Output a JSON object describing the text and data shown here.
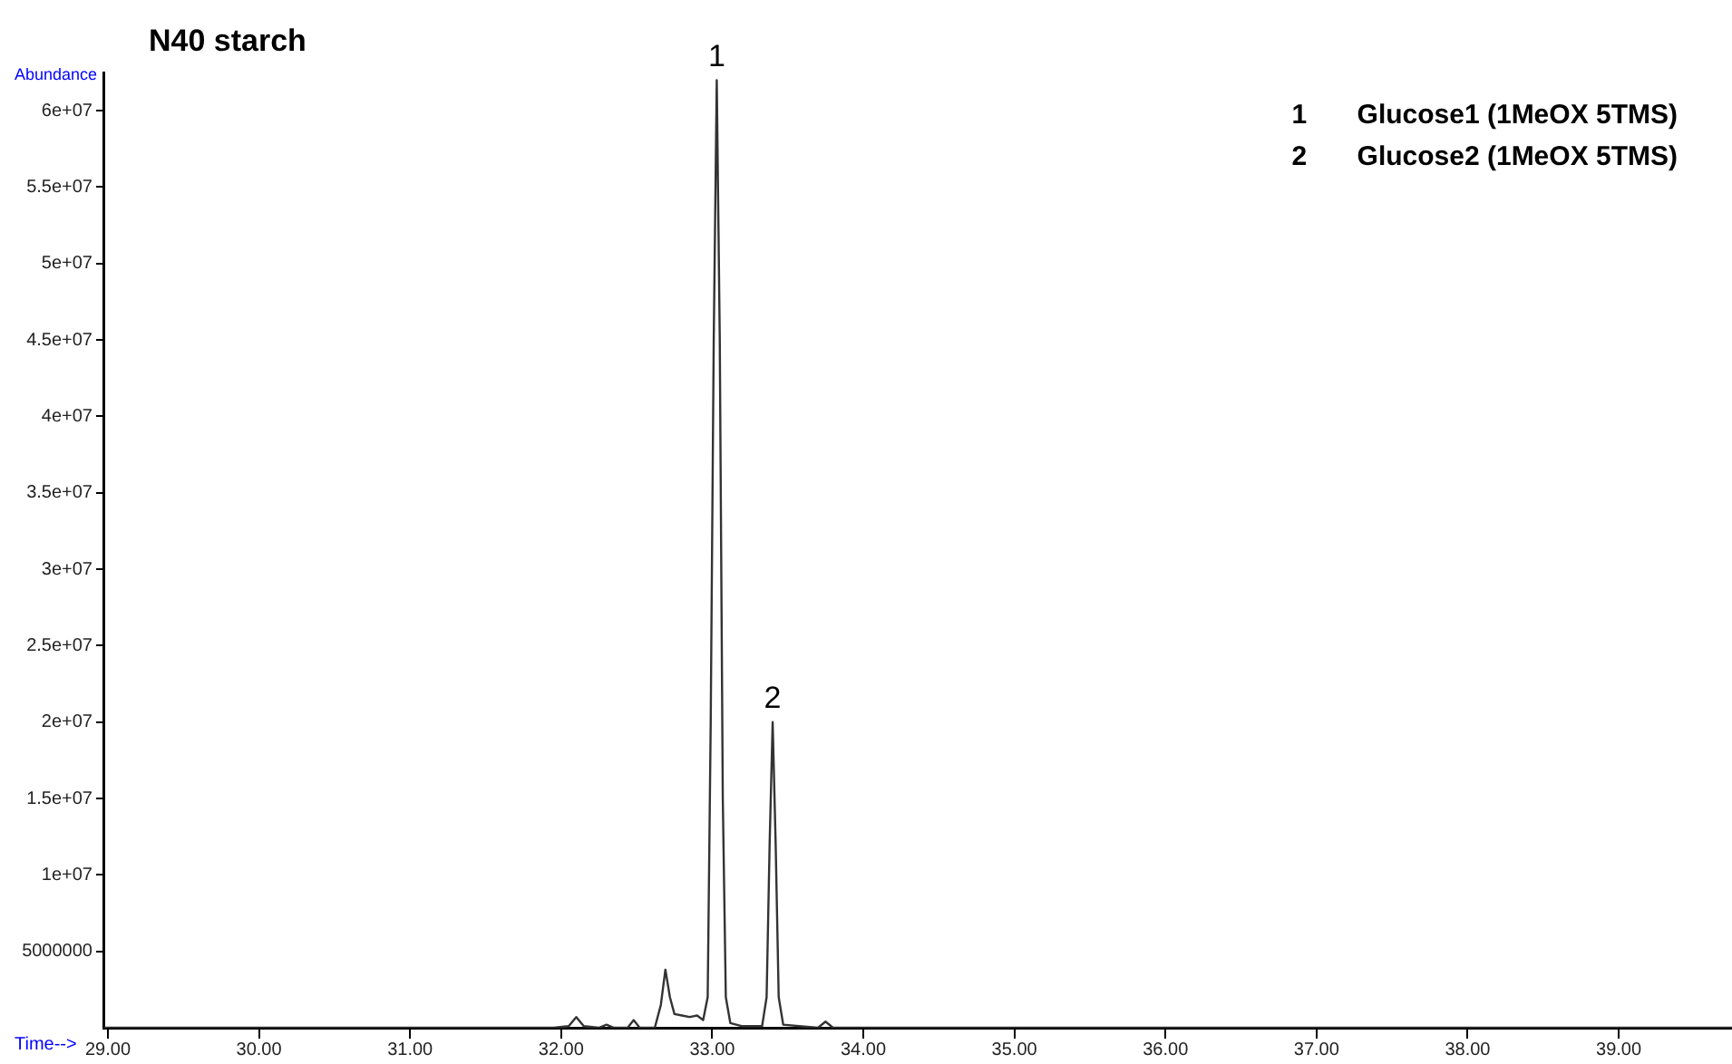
{
  "chart_data": {
    "type": "line",
    "title": "N40 starch",
    "xlabel": "Time-->",
    "ylabel": "Abundance",
    "series": [
      {
        "color": "#333333",
        "x": [
          28.97,
          31.95,
          32.05,
          32.1,
          32.15,
          32.25,
          32.3,
          32.35,
          32.44,
          32.48,
          32.52,
          32.62,
          32.66,
          32.69,
          32.72,
          32.75,
          32.8,
          32.85,
          32.9,
          32.94,
          32.97,
          32.99,
          33.01,
          33.03,
          33.05,
          33.07,
          33.09,
          33.12,
          33.2,
          33.33,
          33.36,
          33.38,
          33.4,
          33.42,
          33.44,
          33.47,
          33.7,
          33.75,
          33.8,
          39.75
        ],
        "values": [
          0,
          0,
          100000,
          700000,
          100000,
          0,
          200000,
          0,
          0,
          500000,
          0,
          0,
          1500000,
          3800000,
          2000000,
          900000,
          800000,
          700000,
          800000,
          500000,
          2000000,
          20000000,
          45000000,
          62000000,
          45000000,
          15000000,
          2000000,
          300000,
          100000,
          100000,
          2000000,
          12000000,
          20000000,
          12000000,
          2000000,
          200000,
          0,
          400000,
          0,
          0
        ]
      }
    ],
    "xlim": [
      28.97,
      39.75
    ],
    "xticks": [
      {
        "value": 29,
        "label": "29.00"
      },
      {
        "value": 30,
        "label": "30.00"
      },
      {
        "value": 31,
        "label": "31.00"
      },
      {
        "value": 32,
        "label": "32.00"
      },
      {
        "value": 33,
        "label": "33.00"
      },
      {
        "value": 34,
        "label": "34.00"
      },
      {
        "value": 35,
        "label": "35.00"
      },
      {
        "value": 36,
        "label": "36.00"
      },
      {
        "value": 37,
        "label": "37.00"
      },
      {
        "value": 38,
        "label": "38.00"
      },
      {
        "value": 39,
        "label": "39.00"
      }
    ],
    "ylim": [
      0,
      62500000
    ],
    "yticks": [
      {
        "value": 5000000,
        "label": "5000000"
      },
      {
        "value": 10000000,
        "label": "1e+07"
      },
      {
        "value": 15000000,
        "label": "1.5e+07"
      },
      {
        "value": 20000000,
        "label": "2e+07"
      },
      {
        "value": 25000000,
        "label": "2.5e+07"
      },
      {
        "value": 30000000,
        "label": "3e+07"
      },
      {
        "value": 35000000,
        "label": "3.5e+07"
      },
      {
        "value": 40000000,
        "label": "4e+07"
      },
      {
        "value": 45000000,
        "label": "4.5e+07"
      },
      {
        "value": 50000000,
        "label": "5e+07"
      },
      {
        "value": 55000000,
        "label": "5.5e+07"
      },
      {
        "value": 60000000,
        "label": "6e+07"
      }
    ],
    "annotations": [
      {
        "text": "1",
        "x": 33.03,
        "y": 62000000
      },
      {
        "text": "2",
        "x": 33.4,
        "y": 20000000
      },
      "1 Glucose1 (1MeOX 5TMS)",
      "2 Glucose2 (1MeOX 5TMS)"
    ],
    "grid": false,
    "legend": false,
    "marker": "none",
    "line_style": "solid"
  }
}
